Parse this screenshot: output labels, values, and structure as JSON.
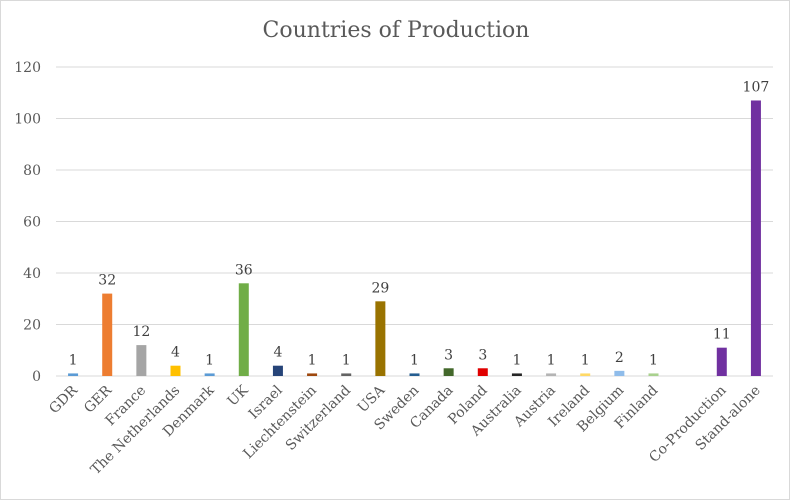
{
  "chart_data": {
    "type": "bar",
    "title": "Countries of Production",
    "xlabel": "",
    "ylabel": "",
    "ylim": [
      0,
      120
    ],
    "yticks": [
      0,
      20,
      40,
      60,
      80,
      100,
      120
    ],
    "grid": true,
    "legend": "none",
    "bars": [
      {
        "category": "GDR",
        "value": 1,
        "color": "#5b9bd5"
      },
      {
        "category": "GER",
        "value": 32,
        "color": "#ed7d31"
      },
      {
        "category": "France",
        "value": 12,
        "color": "#a5a5a5"
      },
      {
        "category": "The Netherlands",
        "value": 4,
        "color": "#ffc000"
      },
      {
        "category": "Denmark",
        "value": 1,
        "color": "#5b9bd5"
      },
      {
        "category": "UK",
        "value": 36,
        "color": "#70ad47"
      },
      {
        "category": "Israel",
        "value": 4,
        "color": "#264478"
      },
      {
        "category": "Liechtenstein",
        "value": 1,
        "color": "#9e480e"
      },
      {
        "category": "Switzerland",
        "value": 1,
        "color": "#636363"
      },
      {
        "category": "USA",
        "value": 29,
        "color": "#997300"
      },
      {
        "category": "Sweden",
        "value": 1,
        "color": "#255e91"
      },
      {
        "category": "Canada",
        "value": 3,
        "color": "#43682b"
      },
      {
        "category": "Poland",
        "value": 3,
        "color": "#e00000"
      },
      {
        "category": "Australia",
        "value": 1,
        "color": "#262626"
      },
      {
        "category": "Austria",
        "value": 1,
        "color": "#b4b4b4"
      },
      {
        "category": "Ireland",
        "value": 1,
        "color": "#ffd966"
      },
      {
        "category": "Belgium",
        "value": 2,
        "color": "#8fbcea"
      },
      {
        "category": "Finland",
        "value": 1,
        "color": "#a9d18e"
      },
      {
        "category": "",
        "value": null,
        "color": ""
      },
      {
        "category": "Co-Production",
        "value": 11,
        "color": "#7030a0"
      },
      {
        "category": "Stand-alone",
        "value": 107,
        "color": "#7030a0"
      }
    ]
  }
}
